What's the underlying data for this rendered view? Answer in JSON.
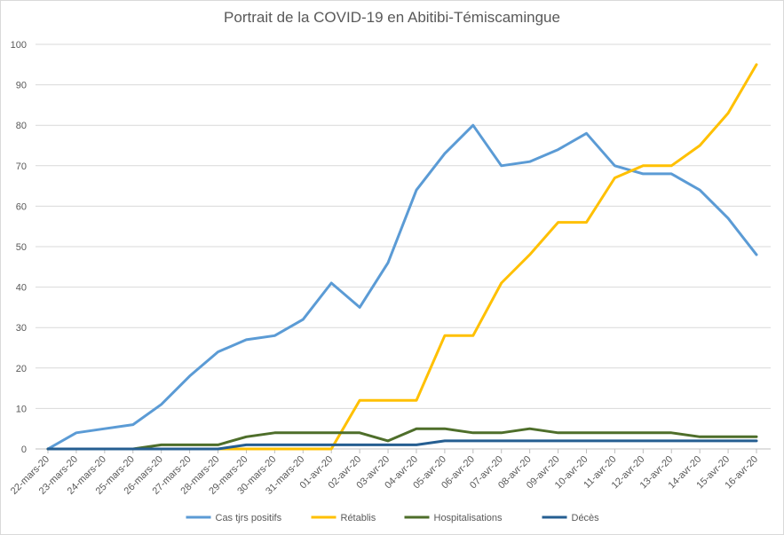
{
  "chart_data": {
    "type": "line",
    "title": "Portrait de la COVID-19 en Abitibi-Témiscamingue",
    "xlabel": "",
    "ylabel": "",
    "ylim": [
      0,
      100
    ],
    "yticks": [
      0,
      10,
      20,
      30,
      40,
      50,
      60,
      70,
      80,
      90,
      100
    ],
    "grid": true,
    "legend_position": "bottom",
    "categories": [
      "22-mars-20",
      "23-mars-20",
      "24-mars-20",
      "25-mars-20",
      "26-mars-20",
      "27-mars-20",
      "28-mars-20",
      "29-mars-20",
      "30-mars-20",
      "31-mars-20",
      "01-avr-20",
      "02-avr-20",
      "03-avr-20",
      "04-avr-20",
      "05-avr-20",
      "06-avr-20",
      "07-avr-20",
      "08-avr-20",
      "09-avr-20",
      "10-avr-20",
      "11-avr-20",
      "12-avr-20",
      "13-avr-20",
      "14-avr-20",
      "15-avr-20",
      "16-avr-20"
    ],
    "series": [
      {
        "name": "Cas tjrs positifs",
        "color": "#5b9bd5",
        "values": [
          0,
          4,
          5,
          6,
          11,
          18,
          24,
          27,
          28,
          32,
          41,
          35,
          46,
          64,
          73,
          80,
          70,
          71,
          74,
          78,
          70,
          68,
          68,
          64,
          57,
          48
        ]
      },
      {
        "name": "Rétablis",
        "color": "#ffc000",
        "values": [
          0,
          0,
          0,
          0,
          0,
          0,
          0,
          0,
          0,
          0,
          0,
          12,
          12,
          12,
          28,
          28,
          41,
          48,
          56,
          56,
          67,
          70,
          70,
          75,
          83,
          95
        ]
      },
      {
        "name": "Hospitalisations",
        "color": "#4e6e2a",
        "values": [
          0,
          0,
          0,
          0,
          1,
          1,
          1,
          3,
          4,
          4,
          4,
          4,
          2,
          5,
          5,
          4,
          4,
          5,
          4,
          4,
          4,
          4,
          4,
          3,
          3,
          3
        ]
      },
      {
        "name": "Décès",
        "color": "#255e91",
        "values": [
          0,
          0,
          0,
          0,
          0,
          0,
          0,
          1,
          1,
          1,
          1,
          1,
          1,
          1,
          2,
          2,
          2,
          2,
          2,
          2,
          2,
          2,
          2,
          2,
          2,
          2
        ]
      }
    ]
  }
}
